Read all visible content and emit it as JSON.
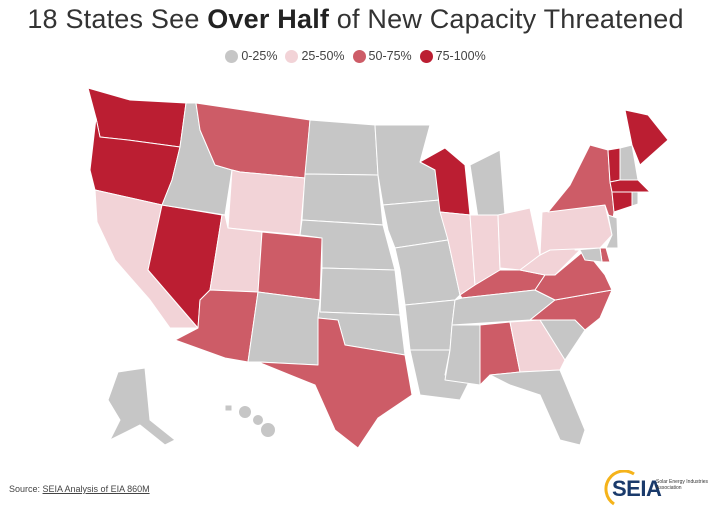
{
  "title": {
    "prefix": "18 States See ",
    "bold": "Over Half",
    "suffix": " of New Capacity Threatened"
  },
  "legend": [
    {
      "label": "0-25%",
      "color": "#c6c6c6"
    },
    {
      "label": "25-50%",
      "color": "#f2d3d7"
    },
    {
      "label": "50-75%",
      "color": "#cd5c67"
    },
    {
      "label": "75-100%",
      "color": "#bb1e32"
    }
  ],
  "states": {
    "WA": 3,
    "OR": 3,
    "NV": 3,
    "WI": 3,
    "ME": 3,
    "VT": 3,
    "MA": 3,
    "CT": 3,
    "MT": 2,
    "CO": 2,
    "AZ": 2,
    "TX": 2,
    "NY": 2,
    "KY": 2,
    "VA": 2,
    "NC": 2,
    "AL": 2,
    "DE": 2,
    "CA": 1,
    "WY": 1,
    "UT": 1,
    "IL": 1,
    "IN": 1,
    "OH": 1,
    "PA": 1,
    "WV": 1,
    "GA": 1,
    "ID": 0,
    "NM": 0,
    "ND": 0,
    "SD": 0,
    "NE": 0,
    "KS": 0,
    "OK": 0,
    "MN": 0,
    "IA": 0,
    "MO": 0,
    "AR": 0,
    "LA": 0,
    "MI": 0,
    "TN": 0,
    "MS": 0,
    "FL": 0,
    "SC": 0,
    "NH": 0,
    "RI": 0,
    "NJ": 0,
    "MD": 0,
    "AK": 0,
    "HI": 0
  },
  "source": {
    "label": "Source: ",
    "link": "SEIA Analysis of EIA 860M"
  },
  "logo": {
    "word": "SEIA",
    "tagline": "Solar Energy Industries Association"
  }
}
